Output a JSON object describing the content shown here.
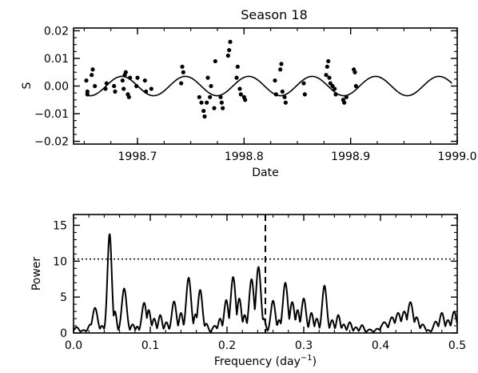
{
  "chart_data": [
    {
      "type": "scatter",
      "title": "Season 18",
      "xlabel": "Date",
      "ylabel": "S",
      "xlim": [
        1998.64,
        1999.0
      ],
      "ylim": [
        -0.021,
        0.021
      ],
      "xticks": [
        1998.7,
        1998.8,
        1998.9,
        1999.0
      ],
      "xtick_labels": [
        "1998.7",
        "1998.8",
        "1998.9",
        "1999.0"
      ],
      "yticks": [
        -0.02,
        -0.01,
        0.0,
        0.01,
        0.02
      ],
      "ytick_labels": [
        "−0.02",
        "−0.01",
        "0.00",
        "0.01",
        "0.02"
      ],
      "model_curve": {
        "amplitude": 0.0035,
        "period": 0.0595,
        "phase_x": 1998.6705
      },
      "points": [
        [
          1998.652,
          0.002
        ],
        [
          1998.653,
          -0.002
        ],
        [
          1998.653,
          -0.003
        ],
        [
          1998.657,
          0.004
        ],
        [
          1998.658,
          0.006
        ],
        [
          1998.66,
          0.0
        ],
        [
          1998.67,
          -0.001
        ],
        [
          1998.671,
          0.001
        ],
        [
          1998.678,
          0.0
        ],
        [
          1998.679,
          -0.002
        ],
        [
          1998.686,
          0.002
        ],
        [
          1998.687,
          -0.001
        ],
        [
          1998.688,
          0.004
        ],
        [
          1998.689,
          0.005
        ],
        [
          1998.691,
          -0.003
        ],
        [
          1998.692,
          -0.004
        ],
        [
          1998.693,
          0.003
        ],
        [
          1998.699,
          0.0
        ],
        [
          1998.7,
          0.003
        ],
        [
          1998.707,
          0.002
        ],
        [
          1998.708,
          -0.002
        ],
        [
          1998.713,
          -0.001
        ],
        [
          1998.741,
          0.001
        ],
        [
          1998.742,
          0.007
        ],
        [
          1998.743,
          0.005
        ],
        [
          1998.758,
          -0.004
        ],
        [
          1998.76,
          -0.006
        ],
        [
          1998.762,
          -0.009
        ],
        [
          1998.763,
          -0.011
        ],
        [
          1998.765,
          -0.006
        ],
        [
          1998.766,
          0.003
        ],
        [
          1998.768,
          -0.004
        ],
        [
          1998.769,
          0.0
        ],
        [
          1998.772,
          -0.008
        ],
        [
          1998.773,
          0.009
        ],
        [
          1998.778,
          -0.004
        ],
        [
          1998.779,
          -0.006
        ],
        [
          1998.78,
          -0.008
        ],
        [
          1998.785,
          0.011
        ],
        [
          1998.786,
          0.013
        ],
        [
          1998.787,
          0.016
        ],
        [
          1998.793,
          0.003
        ],
        [
          1998.794,
          0.007
        ],
        [
          1998.796,
          -0.001
        ],
        [
          1998.797,
          -0.003
        ],
        [
          1998.8,
          -0.004
        ],
        [
          1998.801,
          -0.005
        ],
        [
          1998.829,
          0.002
        ],
        [
          1998.83,
          -0.003
        ],
        [
          1998.834,
          0.006
        ],
        [
          1998.835,
          0.008
        ],
        [
          1998.836,
          -0.002
        ],
        [
          1998.838,
          -0.004
        ],
        [
          1998.839,
          -0.006
        ],
        [
          1998.856,
          0.001
        ],
        [
          1998.857,
          -0.003
        ],
        [
          1998.877,
          0.004
        ],
        [
          1998.878,
          0.007
        ],
        [
          1998.879,
          0.009
        ],
        [
          1998.88,
          0.003
        ],
        [
          1998.881,
          0.001
        ],
        [
          1998.883,
          0.0
        ],
        [
          1998.885,
          -0.001
        ],
        [
          1998.886,
          -0.003
        ],
        [
          1998.893,
          -0.005
        ],
        [
          1998.894,
          -0.006
        ],
        [
          1998.896,
          -0.004
        ],
        [
          1998.903,
          0.006
        ],
        [
          1998.904,
          0.005
        ],
        [
          1998.905,
          0.0
        ]
      ]
    },
    {
      "type": "line",
      "title": "",
      "xlabel": "Frequency (day",
      "xlabel_sup": "−1",
      "xlabel_end": ")",
      "ylabel": "Power",
      "xlim": [
        0.0,
        0.5
      ],
      "ylim": [
        0,
        16.5
      ],
      "xticks": [
        0.0,
        0.1,
        0.2,
        0.3,
        0.4,
        0.5
      ],
      "xtick_labels": [
        "0.0",
        "0.1",
        "0.2",
        "0.3",
        "0.4",
        "0.5"
      ],
      "yticks": [
        0,
        5,
        10,
        15
      ],
      "ytick_labels": [
        "0",
        "5",
        "10",
        "15"
      ],
      "significance_level": 10.3,
      "marker_frequency": 0.25,
      "peaks": [
        [
          0.004,
          0.8,
          0.003
        ],
        [
          0.013,
          0.4,
          0.003
        ],
        [
          0.022,
          1.2,
          0.003
        ],
        [
          0.028,
          3.5,
          0.0033
        ],
        [
          0.037,
          1.0,
          0.0025
        ],
        [
          0.047,
          13.8,
          0.0028
        ],
        [
          0.054,
          3.0,
          0.0022
        ],
        [
          0.066,
          6.2,
          0.0032
        ],
        [
          0.077,
          1.2,
          0.0025
        ],
        [
          0.083,
          0.9,
          0.002
        ],
        [
          0.092,
          4.2,
          0.003
        ],
        [
          0.098,
          3.2,
          0.0025
        ],
        [
          0.105,
          2.0,
          0.0025
        ],
        [
          0.113,
          2.5,
          0.0025
        ],
        [
          0.121,
          1.5,
          0.0025
        ],
        [
          0.131,
          4.4,
          0.003
        ],
        [
          0.14,
          2.8,
          0.0025
        ],
        [
          0.15,
          7.7,
          0.0032
        ],
        [
          0.159,
          2.6,
          0.0025
        ],
        [
          0.165,
          6.0,
          0.003
        ],
        [
          0.173,
          1.3,
          0.0025
        ],
        [
          0.184,
          1.0,
          0.003
        ],
        [
          0.191,
          2.0,
          0.0025
        ],
        [
          0.199,
          4.6,
          0.0028
        ],
        [
          0.208,
          7.8,
          0.0032
        ],
        [
          0.216,
          4.8,
          0.0028
        ],
        [
          0.223,
          2.5,
          0.0025
        ],
        [
          0.232,
          7.5,
          0.0032
        ],
        [
          0.241,
          9.2,
          0.0032
        ],
        [
          0.248,
          2.0,
          0.0025
        ],
        [
          0.26,
          4.5,
          0.003
        ],
        [
          0.268,
          1.8,
          0.0025
        ],
        [
          0.276,
          7.0,
          0.0032
        ],
        [
          0.285,
          4.3,
          0.003
        ],
        [
          0.292,
          3.2,
          0.0025
        ],
        [
          0.3,
          4.8,
          0.003
        ],
        [
          0.31,
          2.8,
          0.0025
        ],
        [
          0.317,
          2.0,
          0.0025
        ],
        [
          0.327,
          6.6,
          0.003
        ],
        [
          0.337,
          1.8,
          0.0025
        ],
        [
          0.345,
          2.5,
          0.0025
        ],
        [
          0.352,
          1.2,
          0.0025
        ],
        [
          0.36,
          1.5,
          0.0025
        ],
        [
          0.368,
          0.8,
          0.0025
        ],
        [
          0.376,
          1.1,
          0.0025
        ],
        [
          0.386,
          0.5,
          0.003
        ],
        [
          0.396,
          0.6,
          0.003
        ],
        [
          0.405,
          1.5,
          0.004
        ],
        [
          0.415,
          2.2,
          0.0035
        ],
        [
          0.423,
          2.8,
          0.0035
        ],
        [
          0.431,
          3.0,
          0.0035
        ],
        [
          0.439,
          4.3,
          0.0035
        ],
        [
          0.447,
          2.2,
          0.003
        ],
        [
          0.455,
          1.2,
          0.003
        ],
        [
          0.462,
          0.4,
          0.003
        ],
        [
          0.472,
          1.6,
          0.003
        ],
        [
          0.48,
          2.8,
          0.003
        ],
        [
          0.488,
          1.8,
          0.003
        ],
        [
          0.496,
          3.0,
          0.003
        ]
      ]
    }
  ]
}
